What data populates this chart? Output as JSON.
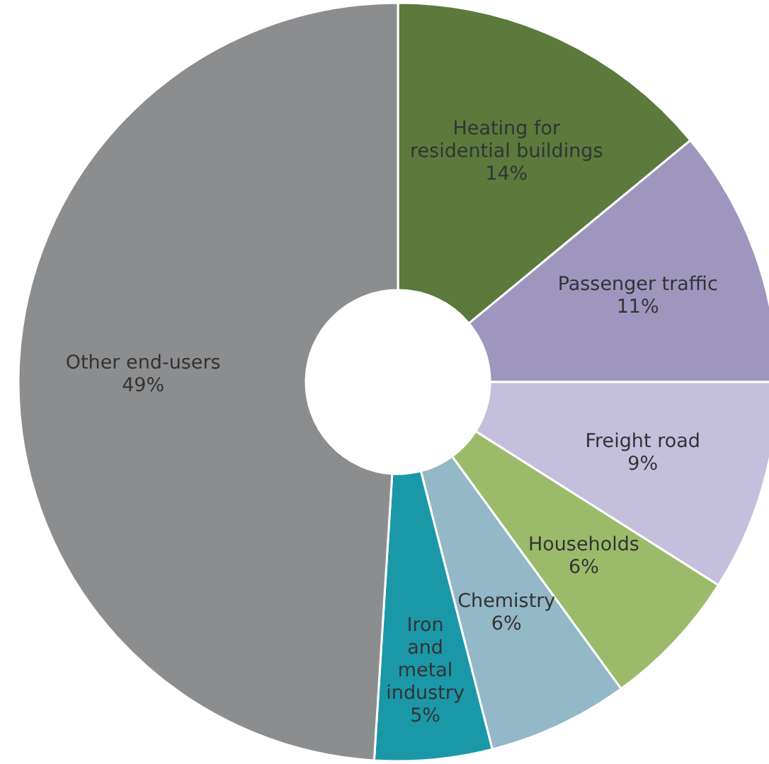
{
  "chart_data": {
    "type": "donut",
    "categories": [
      "Heating for residential buildings",
      "Passenger traffic",
      "Freight road",
      "Households",
      "Chemistry",
      "Iron and metal industry",
      "Other end-users"
    ],
    "values": [
      14,
      11,
      9,
      6,
      6,
      5,
      49
    ],
    "colors": [
      "#5b7a3c",
      "#9f96c0",
      "#c3bfdc",
      "#9bbb6b",
      "#93b8c8",
      "#1b98a8",
      "#8c8d8f"
    ],
    "value_labels": [
      "14%",
      "11%",
      "9%",
      "6%",
      "6%",
      "5%",
      "49%"
    ]
  }
}
